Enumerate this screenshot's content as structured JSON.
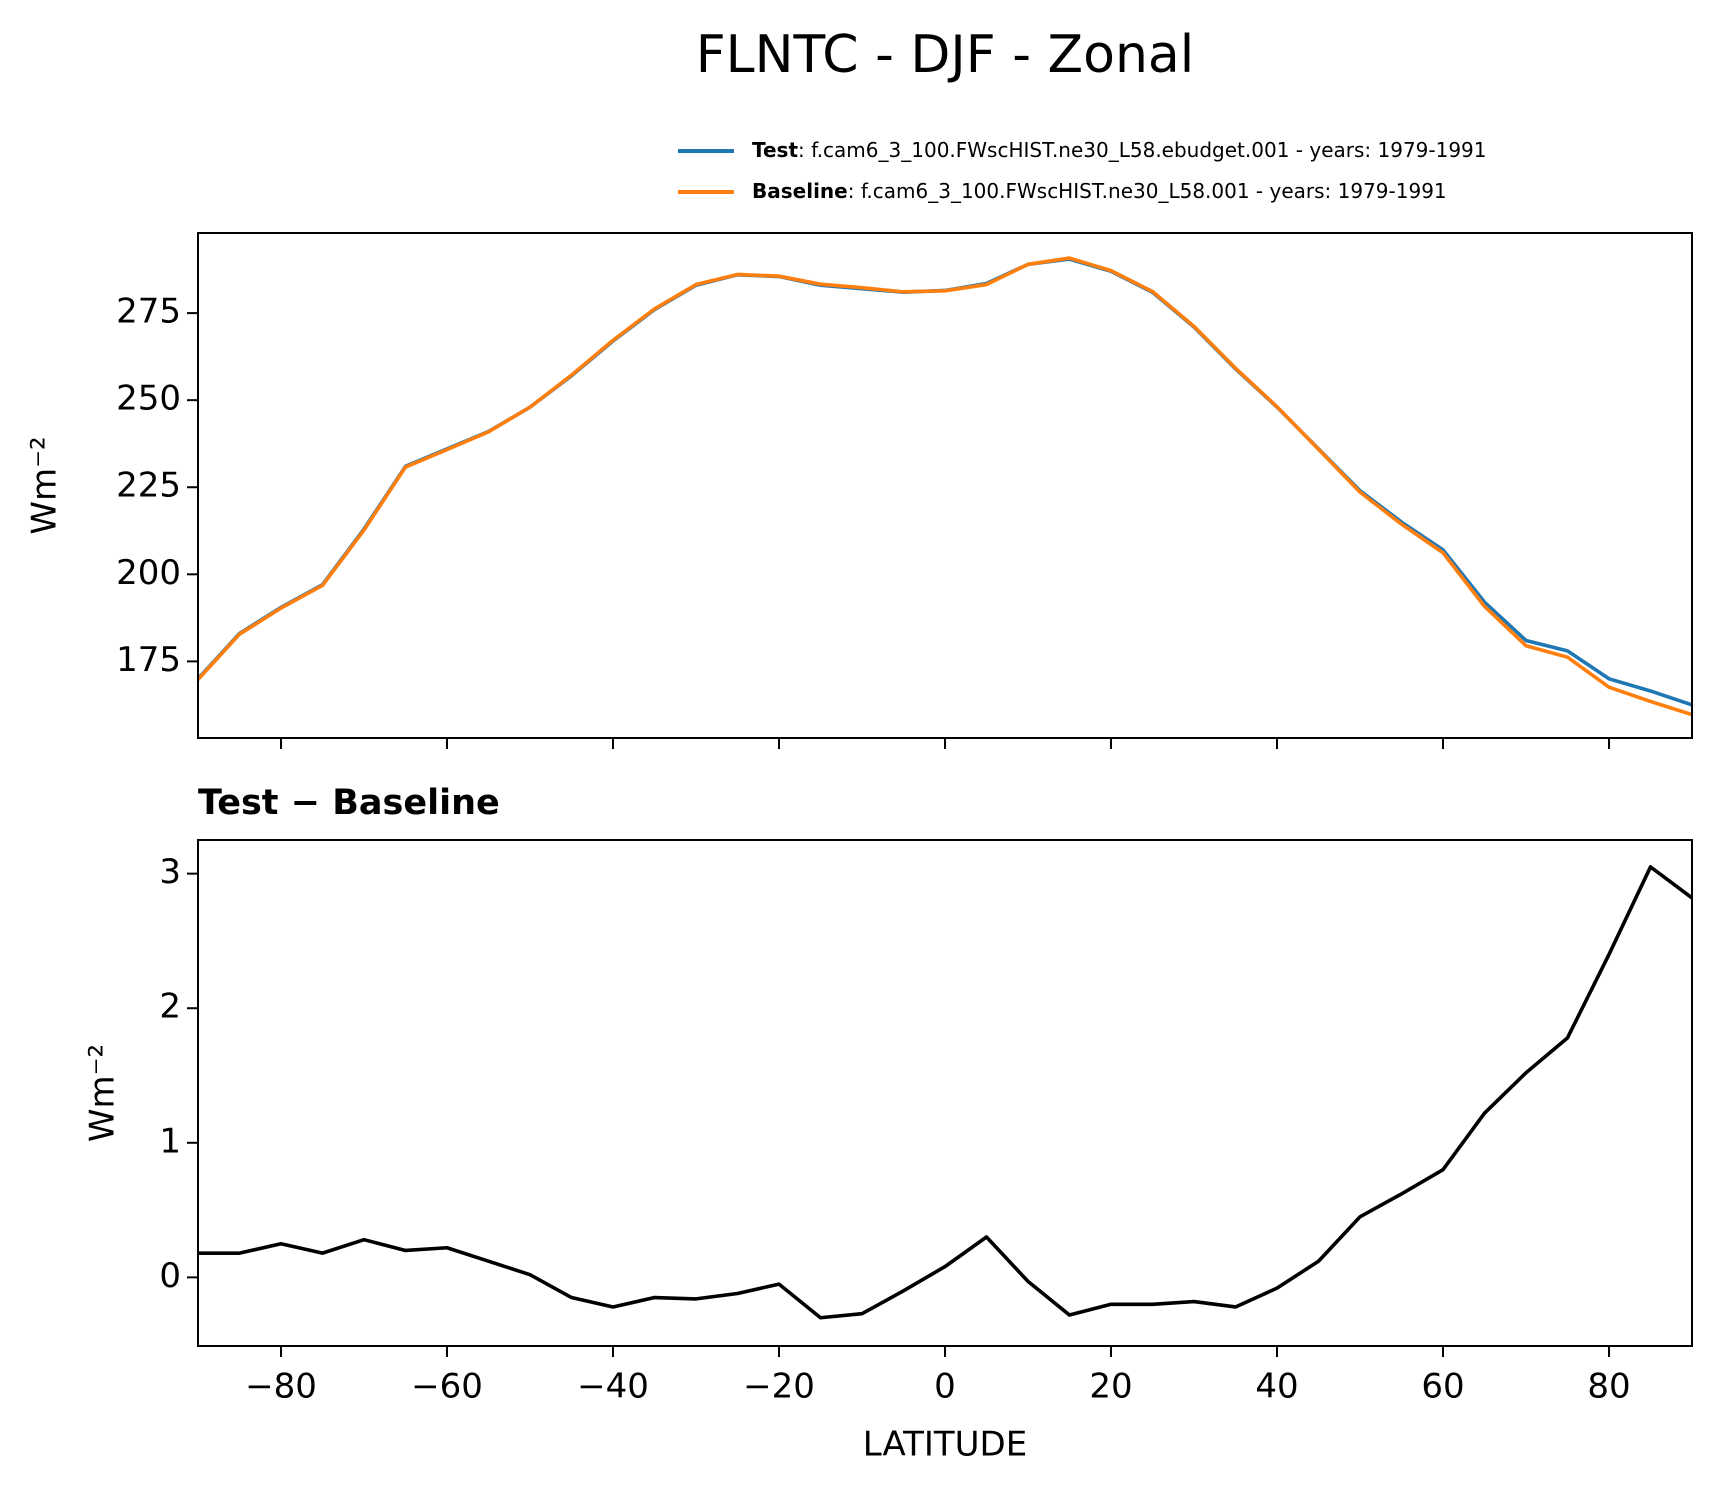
{
  "chart_data": [
    {
      "type": "line",
      "title": "FLNTC - DJF - Zonal",
      "ylabel": "Wm⁻²",
      "x": [
        -90,
        -85,
        -80,
        -75,
        -70,
        -65,
        -60,
        -55,
        -50,
        -45,
        -40,
        -35,
        -30,
        -25,
        -20,
        -15,
        -10,
        -5,
        0,
        5,
        10,
        15,
        20,
        25,
        30,
        35,
        40,
        45,
        50,
        55,
        60,
        65,
        70,
        75,
        80,
        85,
        90
      ],
      "series": [
        {
          "name": "Test",
          "description": ": f.cam6_3_100.FWscHIST.ne30_L58.ebudget.001 - years: 1979-1991",
          "color": "#1f77b4",
          "values": [
            170,
            183,
            190.5,
            197,
            213,
            231,
            236,
            241,
            248,
            257,
            267,
            276,
            283,
            286,
            285.5,
            283,
            282,
            281,
            281.5,
            283.5,
            289,
            290.5,
            287,
            281,
            271,
            259,
            248,
            236,
            224,
            215,
            207,
            192,
            181,
            178,
            170,
            166.5,
            162.5
          ]
        },
        {
          "name": "Baseline",
          "description": ": f.cam6_3_100.FWscHIST.ne30_L58.001 - years: 1979-1991",
          "color": "#ff7f0e",
          "values": [
            169.8,
            182.8,
            190.3,
            196.8,
            212.7,
            230.8,
            235.8,
            240.9,
            248.0,
            257.2,
            267.2,
            276.2,
            283.2,
            286.1,
            285.6,
            283.3,
            282.3,
            281.1,
            281.4,
            283.2,
            289.0,
            290.8,
            287.2,
            281.2,
            271.2,
            259.2,
            248.1,
            235.9,
            223.6,
            214.4,
            206.2,
            190.8,
            179.5,
            176.2,
            167.6,
            163.5,
            159.7
          ]
        }
      ],
      "xlim": [
        -90,
        90
      ],
      "ylim": [
        153,
        298
      ],
      "yticks": [
        175,
        200,
        225,
        250,
        275
      ]
    },
    {
      "type": "line",
      "title": "Test − Baseline",
      "ylabel": "Wm⁻²",
      "xlabel": "LATITUDE",
      "x": [
        -90,
        -85,
        -80,
        -75,
        -70,
        -65,
        -60,
        -55,
        -50,
        -45,
        -40,
        -35,
        -30,
        -25,
        -20,
        -15,
        -10,
        -5,
        0,
        5,
        10,
        15,
        20,
        25,
        30,
        35,
        40,
        45,
        50,
        55,
        60,
        65,
        70,
        75,
        80,
        85,
        90
      ],
      "series": [
        {
          "color": "#000000",
          "values": [
            0.18,
            0.18,
            0.25,
            0.18,
            0.28,
            0.2,
            0.22,
            0.12,
            0.02,
            -0.15,
            -0.22,
            -0.15,
            -0.16,
            -0.12,
            -0.05,
            -0.3,
            -0.27,
            -0.1,
            0.08,
            0.3,
            -0.03,
            -0.28,
            -0.2,
            -0.2,
            -0.18,
            -0.22,
            -0.08,
            0.12,
            0.45,
            0.62,
            0.8,
            1.22,
            1.52,
            1.78,
            2.4,
            3.05,
            2.82
          ]
        }
      ],
      "xlim": [
        -90,
        90
      ],
      "ylim": [
        -0.51,
        3.25
      ],
      "yticks": [
        0,
        1,
        2,
        3
      ],
      "xticks": [
        {
          "value": -80,
          "label": "−80"
        },
        {
          "value": -60,
          "label": "−60"
        },
        {
          "value": -40,
          "label": "−40"
        },
        {
          "value": -20,
          "label": "−20"
        },
        0,
        20,
        40,
        60,
        80
      ]
    }
  ]
}
